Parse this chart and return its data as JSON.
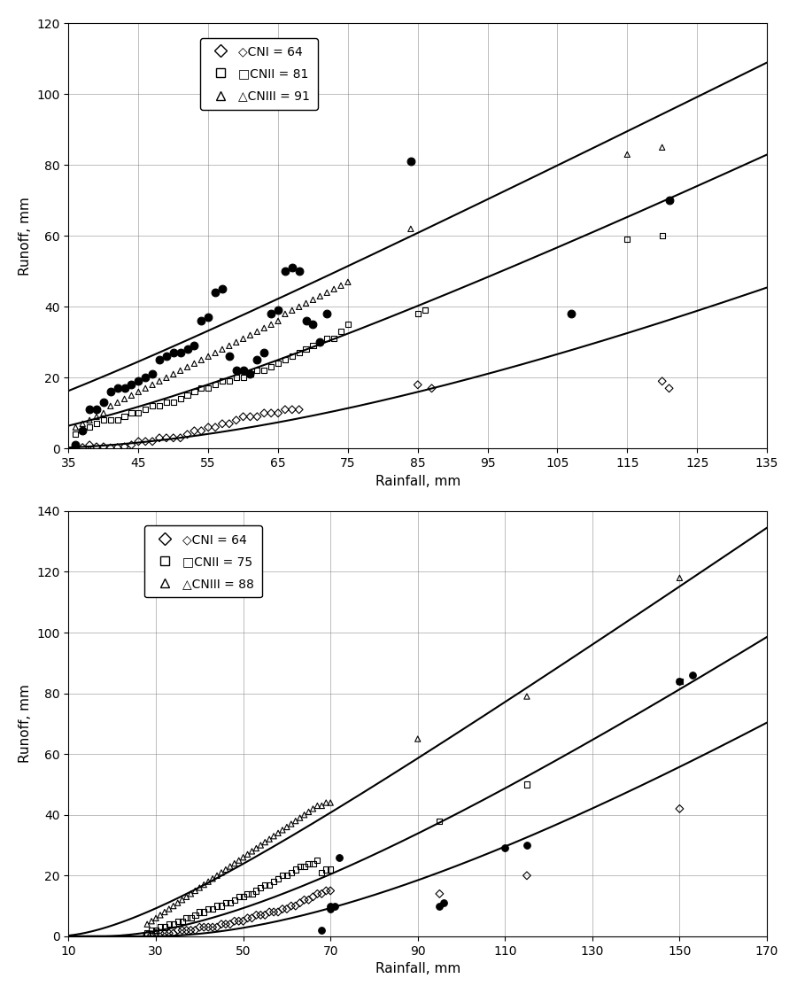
{
  "plot1": {
    "title": "",
    "xlabel": "Rainfall, mm",
    "ylabel": "Runoff, mm",
    "xlim": [
      35,
      135
    ],
    "ylim": [
      0,
      120
    ],
    "xticks": [
      35,
      45,
      55,
      65,
      75,
      85,
      95,
      105,
      115,
      125,
      135
    ],
    "yticks": [
      0,
      20,
      40,
      60,
      80,
      100,
      120
    ],
    "CN_I": 64,
    "CN_II": 81,
    "CN_III": 91,
    "legend_labels": [
      "CNI = 64",
      "CNII = 81",
      "CNIII = 91"
    ],
    "scatter_diamonds": [
      [
        36,
        0.5
      ],
      [
        37,
        0.3
      ],
      [
        38,
        1
      ],
      [
        39,
        0.5
      ],
      [
        40,
        0.5
      ],
      [
        41,
        0.2
      ],
      [
        42,
        0.3
      ],
      [
        43,
        0.5
      ],
      [
        44,
        1
      ],
      [
        45,
        2
      ],
      [
        46,
        2
      ],
      [
        47,
        2
      ],
      [
        48,
        3
      ],
      [
        49,
        3
      ],
      [
        50,
        3
      ],
      [
        51,
        3
      ],
      [
        52,
        4
      ],
      [
        53,
        5
      ],
      [
        54,
        5
      ],
      [
        55,
        6
      ],
      [
        56,
        6
      ],
      [
        57,
        7
      ],
      [
        58,
        7
      ],
      [
        59,
        8
      ],
      [
        60,
        9
      ],
      [
        61,
        9
      ],
      [
        62,
        9
      ],
      [
        63,
        10
      ],
      [
        64,
        10
      ],
      [
        65,
        10
      ],
      [
        66,
        11
      ],
      [
        67,
        11
      ],
      [
        68,
        11
      ],
      [
        85,
        18
      ],
      [
        87,
        17
      ],
      [
        120,
        19
      ],
      [
        121,
        17
      ]
    ],
    "scatter_squares": [
      [
        36,
        4
      ],
      [
        37,
        5
      ],
      [
        38,
        6
      ],
      [
        39,
        7
      ],
      [
        40,
        8
      ],
      [
        41,
        8
      ],
      [
        42,
        8
      ],
      [
        43,
        9
      ],
      [
        44,
        10
      ],
      [
        45,
        10
      ],
      [
        46,
        11
      ],
      [
        47,
        12
      ],
      [
        48,
        12
      ],
      [
        49,
        13
      ],
      [
        50,
        13
      ],
      [
        51,
        14
      ],
      [
        52,
        15
      ],
      [
        53,
        16
      ],
      [
        54,
        17
      ],
      [
        55,
        17
      ],
      [
        56,
        18
      ],
      [
        57,
        19
      ],
      [
        58,
        19
      ],
      [
        59,
        20
      ],
      [
        60,
        20
      ],
      [
        61,
        21
      ],
      [
        62,
        22
      ],
      [
        63,
        22
      ],
      [
        64,
        23
      ],
      [
        65,
        24
      ],
      [
        66,
        25
      ],
      [
        67,
        26
      ],
      [
        68,
        27
      ],
      [
        69,
        28
      ],
      [
        70,
        29
      ],
      [
        71,
        30
      ],
      [
        72,
        31
      ],
      [
        73,
        31
      ],
      [
        74,
        33
      ],
      [
        75,
        35
      ],
      [
        85,
        38
      ],
      [
        86,
        39
      ],
      [
        115,
        59
      ],
      [
        120,
        60
      ]
    ],
    "scatter_triangles": [
      [
        36,
        6
      ],
      [
        37,
        7
      ],
      [
        38,
        8
      ],
      [
        39,
        9
      ],
      [
        40,
        10
      ],
      [
        41,
        12
      ],
      [
        42,
        13
      ],
      [
        43,
        14
      ],
      [
        44,
        15
      ],
      [
        45,
        16
      ],
      [
        46,
        17
      ],
      [
        47,
        18
      ],
      [
        48,
        19
      ],
      [
        49,
        20
      ],
      [
        50,
        21
      ],
      [
        51,
        22
      ],
      [
        52,
        23
      ],
      [
        53,
        24
      ],
      [
        54,
        25
      ],
      [
        55,
        26
      ],
      [
        56,
        27
      ],
      [
        57,
        28
      ],
      [
        58,
        29
      ],
      [
        59,
        30
      ],
      [
        60,
        31
      ],
      [
        61,
        32
      ],
      [
        62,
        33
      ],
      [
        63,
        34
      ],
      [
        64,
        35
      ],
      [
        65,
        36
      ],
      [
        66,
        38
      ],
      [
        67,
        39
      ],
      [
        68,
        40
      ],
      [
        69,
        41
      ],
      [
        70,
        42
      ],
      [
        71,
        43
      ],
      [
        72,
        44
      ],
      [
        73,
        45
      ],
      [
        74,
        46
      ],
      [
        75,
        47
      ],
      [
        84,
        62
      ],
      [
        115,
        83
      ],
      [
        120,
        85
      ]
    ],
    "scatter_filled_circles": [
      [
        36,
        1
      ],
      [
        37,
        5
      ],
      [
        38,
        11
      ],
      [
        39,
        11
      ],
      [
        40,
        13
      ],
      [
        41,
        16
      ],
      [
        42,
        17
      ],
      [
        43,
        17
      ],
      [
        44,
        18
      ],
      [
        45,
        19
      ],
      [
        46,
        20
      ],
      [
        47,
        21
      ],
      [
        48,
        25
      ],
      [
        49,
        26
      ],
      [
        50,
        27
      ],
      [
        51,
        27
      ],
      [
        52,
        28
      ],
      [
        53,
        29
      ],
      [
        54,
        36
      ],
      [
        55,
        37
      ],
      [
        56,
        44
      ],
      [
        57,
        45
      ],
      [
        58,
        26
      ],
      [
        59,
        22
      ],
      [
        60,
        22
      ],
      [
        61,
        21
      ],
      [
        62,
        25
      ],
      [
        63,
        27
      ],
      [
        64,
        38
      ],
      [
        65,
        39
      ],
      [
        66,
        50
      ],
      [
        67,
        51
      ],
      [
        68,
        50
      ],
      [
        69,
        36
      ],
      [
        70,
        35
      ],
      [
        71,
        30
      ],
      [
        72,
        38
      ],
      [
        84,
        81
      ],
      [
        107,
        38
      ],
      [
        121,
        70
      ]
    ]
  },
  "plot2": {
    "title": "",
    "xlabel": "Rainfall, mm",
    "ylabel": "Runoff, mm",
    "xlim": [
      10,
      170
    ],
    "ylim": [
      0,
      140
    ],
    "xticks": [
      10,
      30,
      50,
      70,
      90,
      110,
      130,
      150,
      170
    ],
    "yticks": [
      0,
      20,
      40,
      60,
      80,
      100,
      120,
      140
    ],
    "CN_I": 64,
    "CN_II": 75,
    "CN_III": 88,
    "legend_labels": [
      "CNI = 64",
      "CNII = 75",
      "CNIII = 88"
    ],
    "scatter_diamonds": [
      [
        28,
        0.5
      ],
      [
        29,
        0.5
      ],
      [
        30,
        1
      ],
      [
        31,
        1
      ],
      [
        32,
        1
      ],
      [
        33,
        1
      ],
      [
        34,
        1
      ],
      [
        35,
        2
      ],
      [
        36,
        2
      ],
      [
        37,
        2
      ],
      [
        38,
        2
      ],
      [
        39,
        2
      ],
      [
        40,
        3
      ],
      [
        41,
        3
      ],
      [
        42,
        3
      ],
      [
        43,
        3
      ],
      [
        44,
        3
      ],
      [
        45,
        4
      ],
      [
        46,
        4
      ],
      [
        47,
        4
      ],
      [
        48,
        5
      ],
      [
        49,
        5
      ],
      [
        50,
        5
      ],
      [
        51,
        6
      ],
      [
        52,
        6
      ],
      [
        53,
        7
      ],
      [
        54,
        7
      ],
      [
        55,
        7
      ],
      [
        56,
        8
      ],
      [
        57,
        8
      ],
      [
        58,
        8
      ],
      [
        59,
        9
      ],
      [
        60,
        9
      ],
      [
        61,
        10
      ],
      [
        62,
        10
      ],
      [
        63,
        11
      ],
      [
        64,
        12
      ],
      [
        65,
        12
      ],
      [
        66,
        13
      ],
      [
        67,
        14
      ],
      [
        68,
        14
      ],
      [
        69,
        15
      ],
      [
        70,
        15
      ],
      [
        95,
        14
      ],
      [
        115,
        20
      ],
      [
        150,
        42
      ]
    ],
    "scatter_squares": [
      [
        28,
        1
      ],
      [
        29,
        2
      ],
      [
        30,
        2
      ],
      [
        31,
        3
      ],
      [
        32,
        3
      ],
      [
        33,
        4
      ],
      [
        34,
        4
      ],
      [
        35,
        5
      ],
      [
        36,
        5
      ],
      [
        37,
        6
      ],
      [
        38,
        6
      ],
      [
        39,
        7
      ],
      [
        40,
        8
      ],
      [
        41,
        8
      ],
      [
        42,
        9
      ],
      [
        43,
        9
      ],
      [
        44,
        10
      ],
      [
        45,
        10
      ],
      [
        46,
        11
      ],
      [
        47,
        11
      ],
      [
        48,
        12
      ],
      [
        49,
        13
      ],
      [
        50,
        13
      ],
      [
        51,
        14
      ],
      [
        52,
        14
      ],
      [
        53,
        15
      ],
      [
        54,
        16
      ],
      [
        55,
        17
      ],
      [
        56,
        17
      ],
      [
        57,
        18
      ],
      [
        58,
        19
      ],
      [
        59,
        20
      ],
      [
        60,
        20
      ],
      [
        61,
        21
      ],
      [
        62,
        22
      ],
      [
        63,
        23
      ],
      [
        64,
        23
      ],
      [
        65,
        24
      ],
      [
        66,
        24
      ],
      [
        67,
        25
      ],
      [
        68,
        21
      ],
      [
        69,
        22
      ],
      [
        70,
        22
      ],
      [
        95,
        38
      ],
      [
        115,
        50
      ],
      [
        150,
        84
      ]
    ],
    "scatter_triangles": [
      [
        28,
        4
      ],
      [
        29,
        5
      ],
      [
        30,
        6
      ],
      [
        31,
        7
      ],
      [
        32,
        8
      ],
      [
        33,
        9
      ],
      [
        34,
        10
      ],
      [
        35,
        11
      ],
      [
        36,
        12
      ],
      [
        37,
        13
      ],
      [
        38,
        14
      ],
      [
        39,
        15
      ],
      [
        40,
        16
      ],
      [
        41,
        17
      ],
      [
        42,
        18
      ],
      [
        43,
        19
      ],
      [
        44,
        20
      ],
      [
        45,
        21
      ],
      [
        46,
        22
      ],
      [
        47,
        23
      ],
      [
        48,
        24
      ],
      [
        49,
        25
      ],
      [
        50,
        26
      ],
      [
        51,
        27
      ],
      [
        52,
        28
      ],
      [
        53,
        29
      ],
      [
        54,
        30
      ],
      [
        55,
        31
      ],
      [
        56,
        32
      ],
      [
        57,
        33
      ],
      [
        58,
        34
      ],
      [
        59,
        35
      ],
      [
        60,
        36
      ],
      [
        61,
        37
      ],
      [
        62,
        38
      ],
      [
        63,
        39
      ],
      [
        64,
        40
      ],
      [
        65,
        41
      ],
      [
        66,
        42
      ],
      [
        67,
        43
      ],
      [
        68,
        43
      ],
      [
        69,
        44
      ],
      [
        70,
        44
      ],
      [
        90,
        65
      ],
      [
        115,
        79
      ],
      [
        150,
        118
      ]
    ],
    "scatter_filled_circles": [
      [
        68,
        2
      ],
      [
        70,
        9
      ],
      [
        70,
        10
      ],
      [
        71,
        10
      ],
      [
        72,
        26
      ],
      [
        95,
        10
      ],
      [
        96,
        11
      ],
      [
        110,
        29
      ],
      [
        115,
        30
      ],
      [
        150,
        84
      ],
      [
        153,
        86
      ]
    ]
  }
}
